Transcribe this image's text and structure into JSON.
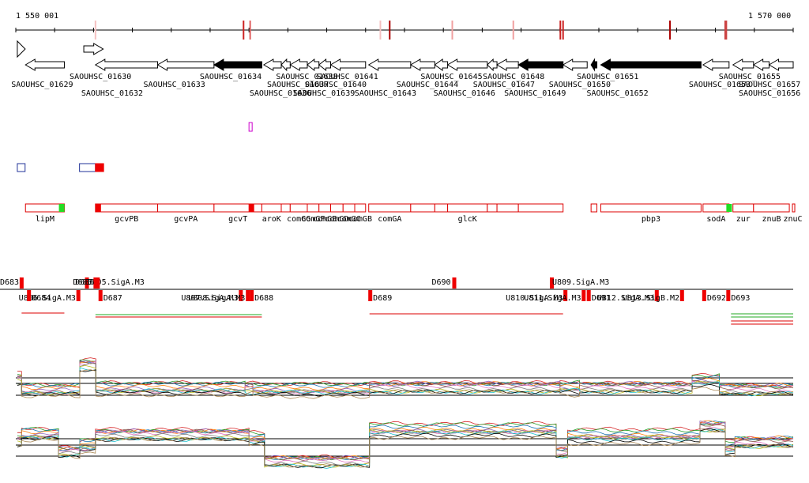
{
  "ruler": {
    "start_label": "1 550 001",
    "end_label": "1 570 000",
    "start_coord": 1550001,
    "end_coord": 1570000,
    "ticks": [
      1550001,
      1551000,
      1552000,
      1553000,
      1554000,
      1555000,
      1556000,
      1557000,
      1558000,
      1559000,
      1560000,
      1561000,
      1562000,
      1563000,
      1564000,
      1565000,
      1566000,
      1567000,
      1568000,
      1569000,
      1570000
    ],
    "marks": [
      {
        "pos": 1552050,
        "color": "#f4c0c0"
      },
      {
        "pos": 1555860,
        "color": "#cc2222"
      },
      {
        "pos": 1556030,
        "color": "#e06060"
      },
      {
        "pos": 1559380,
        "color": "#f4c0c0"
      },
      {
        "pos": 1559620,
        "color": "#aa0000"
      },
      {
        "pos": 1561230,
        "color": "#f0a0a0"
      },
      {
        "pos": 1562800,
        "color": "#f0a0a0"
      },
      {
        "pos": 1564010,
        "color": "#cc2222"
      },
      {
        "pos": 1564080,
        "color": "#cc2222"
      },
      {
        "pos": 1566830,
        "color": "#aa0000"
      },
      {
        "pos": 1568250,
        "color": "#cc4444"
      },
      {
        "pos": 1568280,
        "color": "#cc4444"
      }
    ]
  },
  "genes": [
    {
      "label": "SAOUHSC_01629",
      "start": 1550250,
      "end": 1551250,
      "strand": "-",
      "row": 0,
      "essential": false
    },
    {
      "label": "SAOUHSC_01630",
      "start": 1551750,
      "end": 1552250,
      "strand": "+",
      "row": 1,
      "essential": false
    },
    {
      "label": "SAOUHSC_01632",
      "start": 1552050,
      "end": 1553650,
      "strand": "-",
      "row": 0,
      "essential": false
    },
    {
      "label": "SAOUHSC_01633",
      "start": 1553650,
      "end": 1555100,
      "strand": "-",
      "row": 0,
      "essential": false
    },
    {
      "label": "SAOUHSC_01634",
      "start": 1555100,
      "end": 1556330,
      "strand": "-",
      "row": 0,
      "essential": true
    },
    {
      "label": "SAOUHSC_01636",
      "start": 1556380,
      "end": 1556830,
      "strand": "-",
      "row": 0,
      "essential": false
    },
    {
      "label": "SAOUHSC_01637",
      "start": 1556830,
      "end": 1557060,
      "strand": "-",
      "row": 0,
      "essential": false
    },
    {
      "label": "SAOUHSC_01638",
      "start": 1557060,
      "end": 1557500,
      "strand": "-",
      "row": 0,
      "essential": false
    },
    {
      "label": "SAOUHSC_01639",
      "start": 1557500,
      "end": 1557800,
      "strand": "-",
      "row": 0,
      "essential": false
    },
    {
      "label": "SAOUHSC_01640",
      "start": 1557800,
      "end": 1558100,
      "strand": "-",
      "row": 0,
      "essential": false
    },
    {
      "label": "SAOUHSC_01641",
      "start": 1558100,
      "end": 1559000,
      "strand": "-",
      "row": 0,
      "essential": false
    },
    {
      "label": "SAOUHSC_01643",
      "start": 1559080,
      "end": 1560160,
      "strand": "-",
      "row": 0,
      "essential": false
    },
    {
      "label": "SAOUHSC_01644",
      "start": 1560160,
      "end": 1560780,
      "strand": "-",
      "row": 0,
      "essential": false
    },
    {
      "label": "SAOUHSC_01645",
      "start": 1560780,
      "end": 1561110,
      "strand": "-",
      "row": 0,
      "essential": false
    },
    {
      "label": "SAOUHSC_01646",
      "start": 1561110,
      "end": 1562130,
      "strand": "-",
      "row": 0,
      "essential": false
    },
    {
      "label": "SAOUHSC_01647",
      "start": 1562130,
      "end": 1562380,
      "strand": "-",
      "row": 0,
      "essential": false
    },
    {
      "label": "SAOUHSC_01648",
      "start": 1562380,
      "end": 1562930,
      "strand": "-",
      "row": 0,
      "essential": false
    },
    {
      "label": "SAOUHSC_01649",
      "start": 1562930,
      "end": 1564080,
      "strand": "-",
      "row": 0,
      "essential": true
    },
    {
      "label": "SAOUHSC_01650",
      "start": 1564080,
      "end": 1564700,
      "strand": "-",
      "row": 0,
      "essential": false
    },
    {
      "label": "SAOUHSC_01651",
      "start": 1564800,
      "end": 1564950,
      "strand": "-",
      "row": 0,
      "essential": true
    },
    {
      "label": "SAOUHSC_01652",
      "start": 1565050,
      "end": 1567630,
      "strand": "-",
      "row": 0,
      "essential": true
    },
    {
      "label": "SAOUHSC_01653",
      "start": 1567680,
      "end": 1568350,
      "strand": "-",
      "row": 0,
      "essential": false
    },
    {
      "label": "SAOUHSC_01655",
      "start": 1568450,
      "end": 1568980,
      "strand": "-",
      "row": 0,
      "essential": false
    },
    {
      "label": "SAOUHSC_01656",
      "start": 1568980,
      "end": 1569380,
      "strand": "-",
      "row": 0,
      "essential": false
    },
    {
      "label": "SAOUHSC_01657",
      "start": 1569380,
      "end": 1570000,
      "strand": "-",
      "row": 0,
      "essential": false
    }
  ],
  "genes_strand_markers": [
    {
      "pos": 1550040,
      "strand": "+"
    }
  ],
  "small_features": [
    {
      "start": 1556000,
      "end": 1556080,
      "track": "magenta",
      "color": "#cc00cc"
    }
  ],
  "boxes": [
    {
      "start": 1550040,
      "end": 1550240,
      "color": "#223399",
      "fill": "none"
    },
    {
      "start": 1551640,
      "end": 1552050,
      "color": "#223399",
      "fill": "none"
    },
    {
      "start": 1552050,
      "end": 1552260,
      "color": "#ee0000",
      "fill": "#ee0000"
    }
  ],
  "named_genes": [
    {
      "label": "lipM",
      "start": 1550250,
      "end": 1551250,
      "marker": {
        "pos": 1551110,
        "color": "#22dd22"
      }
    },
    {
      "label": "gcvPB",
      "start": 1552050,
      "end": 1553650,
      "marker": {
        "pos": 1552050,
        "color": "#ee0000"
      }
    },
    {
      "label": "gcvPA",
      "start": 1553650,
      "end": 1555100
    },
    {
      "label": "gcvT",
      "start": 1555100,
      "end": 1556330,
      "marker": {
        "pos": 1555990,
        "color": "#ee0000"
      }
    },
    {
      "label": "aroK",
      "start": 1556330,
      "end": 1556830
    },
    {
      "label": "",
      "start": 1556830,
      "end": 1557060
    },
    {
      "label": "comGG",
      "start": 1557060,
      "end": 1557500
    },
    {
      "label": "comGF",
      "start": 1557500,
      "end": 1557800
    },
    {
      "label": "comGE",
      "start": 1557800,
      "end": 1558100
    },
    {
      "label": "comGD",
      "start": 1558100,
      "end": 1558420
    },
    {
      "label": "comGC",
      "start": 1558420,
      "end": 1558720
    },
    {
      "label": "comGB",
      "start": 1558720,
      "end": 1559000
    },
    {
      "label": "comGA",
      "start": 1559080,
      "end": 1560160
    },
    {
      "label": "",
      "start": 1560160,
      "end": 1560780
    },
    {
      "label": "",
      "start": 1560780,
      "end": 1561110
    },
    {
      "label": "glcK",
      "start": 1561110,
      "end": 1562130
    },
    {
      "label": "",
      "start": 1562130,
      "end": 1562380
    },
    {
      "label": "",
      "start": 1562380,
      "end": 1562930
    },
    {
      "label": "",
      "start": 1562930,
      "end": 1564080
    },
    {
      "label": "",
      "start": 1564800,
      "end": 1564950
    },
    {
      "label": "pbp3",
      "start": 1565050,
      "end": 1567630
    },
    {
      "label": "sodA",
      "start": 1567680,
      "end": 1568350,
      "marker": {
        "pos": 1568280,
        "color": "#22dd22"
      }
    },
    {
      "label": "zur",
      "start": 1568450,
      "end": 1568980
    },
    {
      "label": "znuB",
      "start": 1568980,
      "end": 1569900
    },
    {
      "label": "znuC",
      "start": 1569980,
      "end": 1570000
    }
  ],
  "transcription": {
    "upper": [
      {
        "label": "D683",
        "pos": 1550100,
        "kind": "D"
      },
      {
        "label": "U805.SigA.M3",
        "pos": 1551780,
        "kind": "U"
      },
      {
        "label": "D685",
        "pos": 1552000,
        "kind": "D"
      },
      {
        "label": "D686",
        "pos": 1552060,
        "kind": "D"
      },
      {
        "label": "D690",
        "pos": 1561230,
        "kind": "D"
      },
      {
        "label": "U809.SigA.M3",
        "pos": 1563740,
        "kind": "U"
      }
    ],
    "lower": [
      {
        "label": "U806.SigA.M3",
        "pos": 1551600,
        "kind": "U"
      },
      {
        "label": "D684",
        "pos": 1550330,
        "kind": "D"
      },
      {
        "label": "D687",
        "pos": 1552170,
        "kind": "D"
      },
      {
        "label": "U807.SigA.M3",
        "pos": 1555780,
        "kind": "U"
      },
      {
        "label": "U808.SigA.M3",
        "pos": 1555960,
        "kind": "U"
      },
      {
        "label": "D688",
        "pos": 1556060,
        "kind": "D"
      },
      {
        "label": "D689",
        "pos": 1559110,
        "kind": "D"
      },
      {
        "label": "U810.SigA.M3",
        "pos": 1564130,
        "kind": "U"
      },
      {
        "label": "U811.SigA.M3",
        "pos": 1564600,
        "kind": "U"
      },
      {
        "label": "D691",
        "pos": 1564730,
        "kind": "D"
      },
      {
        "label": "U812.SigA.M3",
        "pos": 1566480,
        "kind": "U"
      },
      {
        "label": "U813.SigB.M2",
        "pos": 1567130,
        "kind": "U"
      },
      {
        "label": "D692",
        "pos": 1567700,
        "kind": "D"
      },
      {
        "label": "D693",
        "pos": 1568320,
        "kind": "D"
      }
    ]
  },
  "expression": {
    "series_count": 12,
    "upper_panel": {
      "baseline": 0,
      "segments": [
        {
          "start": 1550040,
          "end": 1550150,
          "level": 0.6
        },
        {
          "start": 1550150,
          "end": 1551650,
          "level": -0.15
        },
        {
          "start": 1551650,
          "end": 1552060,
          "level": 1.4
        },
        {
          "start": 1552060,
          "end": 1555900,
          "level": -0.05
        },
        {
          "start": 1555900,
          "end": 1556100,
          "level": 0.05
        },
        {
          "start": 1556100,
          "end": 1559100,
          "level": -0.12
        },
        {
          "start": 1559100,
          "end": 1564000,
          "level": 0.1
        },
        {
          "start": 1564000,
          "end": 1564500,
          "level": 0.0
        },
        {
          "start": 1564500,
          "end": 1567400,
          "level": 0.08
        },
        {
          "start": 1567400,
          "end": 1568100,
          "level": 0.4
        },
        {
          "start": 1568100,
          "end": 1570000,
          "level": -0.05
        }
      ]
    },
    "lower_panel": {
      "baseline": 0,
      "segments": [
        {
          "start": 1550040,
          "end": 1550150,
          "level": 0.3
        },
        {
          "start": 1550150,
          "end": 1551100,
          "level": 0.6
        },
        {
          "start": 1551100,
          "end": 1551650,
          "level": -0.5
        },
        {
          "start": 1551650,
          "end": 1552050,
          "level": -0.2
        },
        {
          "start": 1552050,
          "end": 1556000,
          "level": 0.7
        },
        {
          "start": 1556000,
          "end": 1556400,
          "level": 0.3
        },
        {
          "start": 1556400,
          "end": 1559100,
          "level": -1.2
        },
        {
          "start": 1559100,
          "end": 1563900,
          "level": 0.9
        },
        {
          "start": 1563900,
          "end": 1564200,
          "level": -0.6
        },
        {
          "start": 1564200,
          "end": 1567600,
          "level": 0.5
        },
        {
          "start": 1567600,
          "end": 1568250,
          "level": 1.2
        },
        {
          "start": 1568250,
          "end": 1568500,
          "level": -0.3
        },
        {
          "start": 1568500,
          "end": 1570000,
          "level": 0.1
        }
      ]
    },
    "palette": [
      "#d62728",
      "#2ca02c",
      "#1f77b4",
      "#ff7f0e",
      "#9467bd",
      "#8c564b",
      "#e377c2",
      "#7f7f7f",
      "#bcbd22",
      "#17becf",
      "#000000",
      "#aa8855"
    ]
  }
}
